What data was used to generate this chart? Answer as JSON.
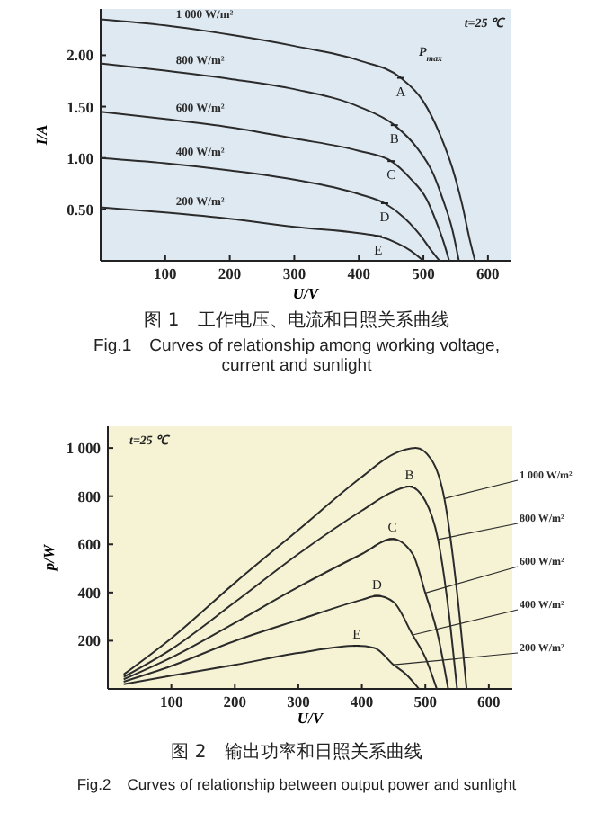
{
  "chart_data": [
    {
      "type": "line",
      "title": "图 1　工作电压、电流和日照关系曲线",
      "subtitle": "Fig.1　Curves of relationship among working voltage, current and sunlight",
      "xlabel": "U/V",
      "ylabel": "I/A",
      "xlim": [
        0,
        635
      ],
      "ylim": [
        0,
        2.45
      ],
      "xticks": [
        100,
        200,
        300,
        400,
        500,
        600
      ],
      "yticks": [
        {
          "value": 0.5,
          "label": "0.50"
        },
        {
          "value": 1,
          "label": "1.00"
        },
        {
          "value": 1.5,
          "label": "1.50"
        },
        {
          "value": 2,
          "label": "2.00"
        }
      ],
      "grid": false,
      "marker": "none",
      "line_style": "solid",
      "series": [
        {
          "name": "1 000 W/m²",
          "color": "#2b2b2b",
          "x": [
            0,
            100,
            200,
            300,
            400,
            465,
            500,
            525,
            545,
            560,
            572,
            580
          ],
          "values": [
            2.35,
            2.29,
            2.2,
            2.09,
            1.95,
            1.78,
            1.55,
            1.24,
            0.9,
            0.55,
            0.2,
            0
          ]
        },
        {
          "name": "800 W/m²",
          "color": "#2b2b2b",
          "x": [
            0,
            100,
            200,
            300,
            400,
            455,
            490,
            515,
            530,
            545,
            555
          ],
          "values": [
            1.92,
            1.85,
            1.77,
            1.67,
            1.5,
            1.32,
            1.1,
            0.85,
            0.6,
            0.3,
            0
          ]
        },
        {
          "name": "600 W/m²",
          "color": "#2b2b2b",
          "x": [
            0,
            100,
            200,
            300,
            400,
            450,
            480,
            505,
            520,
            532,
            540
          ],
          "values": [
            1.45,
            1.38,
            1.3,
            1.19,
            1.07,
            0.97,
            0.8,
            0.6,
            0.38,
            0.17,
            0
          ]
        },
        {
          "name": "400 W/m²",
          "color": "#2b2b2b",
          "x": [
            0,
            100,
            200,
            300,
            400,
            440,
            470,
            495,
            510,
            525
          ],
          "values": [
            1.0,
            0.95,
            0.88,
            0.79,
            0.65,
            0.56,
            0.42,
            0.25,
            0.12,
            0
          ]
        },
        {
          "name": "200 W/m²",
          "color": "#2b2b2b",
          "x": [
            0,
            100,
            200,
            300,
            400,
            430,
            460,
            480,
            500
          ],
          "values": [
            0.52,
            0.47,
            0.41,
            0.33,
            0.27,
            0.24,
            0.17,
            0.1,
            0
          ]
        }
      ],
      "annotations": [
        "t=25 ℃",
        "P$_{max}$",
        {
          "text": "A",
          "x": 465,
          "y": 1.78
        },
        {
          "text": "B",
          "x": 455,
          "y": 1.32
        },
        {
          "text": "C",
          "x": 450,
          "y": 0.97
        },
        {
          "text": "D",
          "x": 440,
          "y": 0.56
        },
        {
          "text": "E",
          "x": 430,
          "y": 0.24
        }
      ]
    },
    {
      "type": "line",
      "title": "图 2　输出功率和日照关系曲线",
      "subtitle": "Fig.2　Curves of relationship between output power and sunlight",
      "xlabel": "U/V",
      "ylabel": "p/W",
      "xlim": [
        0,
        637
      ],
      "ylim": [
        0,
        1090
      ],
      "xticks": [
        100,
        200,
        300,
        400,
        500,
        600
      ],
      "yticks": [
        200,
        400,
        600,
        800,
        {
          "value": 1000,
          "label": "1 000"
        }
      ],
      "grid": false,
      "marker": "none",
      "line_style": "solid",
      "series": [
        {
          "name": "1 000 W/m²",
          "color": "#2b2b2b",
          "x": [
            25,
            100,
            200,
            300,
            400,
            450,
            485,
            510,
            530,
            550,
            565
          ],
          "values": [
            60,
            210,
            440,
            660,
            880,
            975,
            1000,
            950,
            790,
            400,
            0
          ]
        },
        {
          "name": "800 W/m²",
          "color": "#2b2b2b",
          "x": [
            25,
            100,
            200,
            300,
            400,
            450,
            475,
            500,
            520,
            540,
            550
          ],
          "values": [
            50,
            165,
            360,
            560,
            740,
            820,
            840,
            780,
            620,
            250,
            0
          ]
        },
        {
          "name": "600 W/m²",
          "color": "#2b2b2b",
          "x": [
            25,
            100,
            200,
            300,
            400,
            448,
            480,
            500,
            520,
            536
          ],
          "values": [
            40,
            130,
            274,
            423,
            560,
            622,
            560,
            398,
            220,
            0
          ]
        },
        {
          "name": "400 W/m²",
          "color": "#2b2b2b",
          "x": [
            25,
            100,
            200,
            300,
            400,
            424,
            450,
            480,
            500,
            518
          ],
          "values": [
            30,
            95,
            199,
            286,
            370,
            386,
            360,
            224,
            130,
            0
          ]
        },
        {
          "name": "200 W/m²",
          "color": "#2b2b2b",
          "x": [
            25,
            100,
            200,
            300,
            392,
            420,
            450,
            470,
            490
          ],
          "values": [
            20,
            55,
            100,
            149,
            179,
            170,
            100,
            60,
            0
          ]
        }
      ],
      "annotations": [
        "t=25 ℃",
        {
          "text": "B",
          "x": 475,
          "y": 840
        },
        {
          "text": "C",
          "x": 448,
          "y": 622
        },
        {
          "text": "D",
          "x": 424,
          "y": 386
        },
        {
          "text": "E",
          "x": 392,
          "y": 179
        }
      ]
    }
  ]
}
